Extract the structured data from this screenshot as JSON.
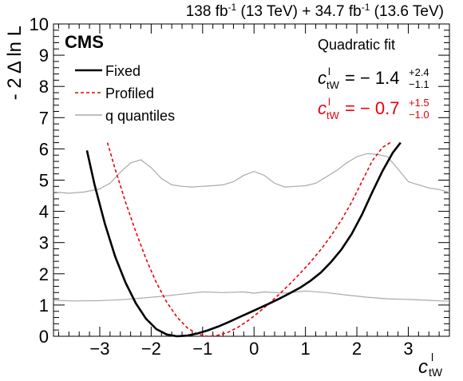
{
  "chart_data": {
    "type": "line",
    "header": {
      "lumi1": "138 fb",
      "lumi1_sup": "-1",
      "energy1": " (13 TeV) + 34.7 fb",
      "lumi2_sup": "-1",
      "energy2": " (13.6 TeV)"
    },
    "experiment": "CMS",
    "ylabel": "- 2 Δ ln L",
    "xlabel": {
      "base": "c",
      "sup": "l",
      "sub": "tW"
    },
    "xlim": [
      -3.9,
      3.8
    ],
    "ylim": [
      0,
      10
    ],
    "x_ticks": [
      -3,
      -2,
      -1,
      0,
      1,
      2,
      3
    ],
    "x_tick_labels": [
      "−3",
      "−2",
      "−1",
      "0",
      "1",
      "2",
      "3"
    ],
    "y_ticks": [
      0,
      1,
      2,
      3,
      4,
      5,
      6,
      7,
      8,
      9,
      10
    ],
    "y_tick_labels": [
      "0",
      "1",
      "2",
      "3",
      "4",
      "5",
      "6",
      "7",
      "8",
      "9",
      "10"
    ],
    "fit_title": "Quadratic fit",
    "results": [
      {
        "label_base": "c",
        "label_sup": "l",
        "label_sub": "tW",
        "eq": "= − 1.4",
        "plus": "+2.4",
        "minus": "−1.1",
        "color": "#000000"
      },
      {
        "label_base": "c",
        "label_sup": "l",
        "label_sub": "tW",
        "eq": "= − 0.7",
        "plus": "+1.5",
        "minus": "−1.0",
        "color": "#e8000b"
      }
    ],
    "series": [
      {
        "name": "Fixed",
        "color": "#000000",
        "style": "solid",
        "x": [
          -3.25,
          -3.1,
          -2.9,
          -2.7,
          -2.5,
          -2.3,
          -2.1,
          -1.9,
          -1.7,
          -1.5,
          -1.3,
          -1.1,
          -0.9,
          -0.7,
          -0.5,
          -0.3,
          -0.1,
          0.1,
          0.3,
          0.5,
          0.7,
          0.9,
          1.1,
          1.3,
          1.5,
          1.7,
          1.9,
          2.1,
          2.3,
          2.5,
          2.7,
          2.85
        ],
        "y": [
          5.95,
          4.85,
          3.6,
          2.55,
          1.72,
          1.06,
          0.56,
          0.23,
          0.06,
          0.0,
          0.02,
          0.09,
          0.19,
          0.31,
          0.45,
          0.6,
          0.75,
          0.9,
          1.05,
          1.21,
          1.38,
          1.56,
          1.78,
          2.04,
          2.38,
          2.78,
          3.28,
          3.9,
          4.62,
          5.3,
          5.88,
          6.2
        ]
      },
      {
        "name": "Profiled",
        "color": "#e8000b",
        "style": "dashed",
        "x": [
          -2.85,
          -2.7,
          -2.5,
          -2.3,
          -2.1,
          -1.9,
          -1.7,
          -1.5,
          -1.3,
          -1.1,
          -0.9,
          -0.7,
          -0.5,
          -0.3,
          -0.1,
          0.1,
          0.3,
          0.5,
          0.7,
          0.9,
          1.1,
          1.3,
          1.5,
          1.7,
          1.9,
          2.1,
          2.3,
          2.5,
          2.65
        ],
        "y": [
          6.2,
          5.35,
          4.3,
          3.35,
          2.48,
          1.72,
          1.1,
          0.62,
          0.27,
          0.07,
          0.0,
          0.03,
          0.13,
          0.3,
          0.52,
          0.78,
          1.06,
          1.36,
          1.68,
          2.02,
          2.38,
          2.78,
          3.22,
          3.72,
          4.3,
          4.96,
          5.62,
          6.05,
          6.2
        ]
      },
      {
        "name": "q quantiles",
        "color": "#aaaaaa",
        "style": "solid",
        "groups": [
          {
            "x": [
              -3.9,
              -3.6,
              -3.3,
              -3.0,
              -2.8,
              -2.6,
              -2.4,
              -2.2,
              -2.0,
              -1.8,
              -1.6,
              -1.4,
              -1.2,
              -1.0,
              -0.8,
              -0.6,
              -0.4,
              -0.2,
              0.0,
              0.2,
              0.4,
              0.6,
              0.8,
              1.0,
              1.2,
              1.4,
              1.6,
              1.8,
              2.0,
              2.2,
              2.4,
              2.6,
              2.8,
              3.0,
              3.2,
              3.4,
              3.6,
              3.8
            ],
            "y": [
              4.62,
              4.58,
              4.62,
              4.72,
              4.9,
              5.25,
              5.55,
              5.65,
              5.4,
              5.05,
              4.85,
              4.8,
              4.78,
              4.8,
              4.82,
              4.85,
              4.95,
              5.15,
              5.28,
              5.15,
              4.9,
              4.78,
              4.8,
              4.82,
              4.9,
              5.1,
              5.3,
              5.55,
              5.75,
              5.85,
              5.82,
              5.75,
              5.35,
              4.95,
              4.85,
              4.75,
              4.7,
              4.6
            ]
          },
          {
            "x": [
              -3.9,
              -3.5,
              -3.0,
              -2.6,
              -2.2,
              -1.8,
              -1.4,
              -1.0,
              -0.6,
              -0.2,
              0.0,
              0.2,
              0.6,
              1.0,
              1.4,
              1.8,
              2.2,
              2.6,
              3.0,
              3.4,
              3.8
            ],
            "y": [
              1.15,
              1.13,
              1.14,
              1.17,
              1.22,
              1.28,
              1.35,
              1.42,
              1.4,
              1.42,
              1.38,
              1.42,
              1.38,
              1.45,
              1.4,
              1.32,
              1.25,
              1.2,
              1.18,
              1.15,
              1.12
            ]
          }
        ]
      }
    ],
    "legend": {
      "placement": "top-left",
      "entries": [
        "Fixed",
        "Profiled",
        "q quantiles"
      ]
    },
    "grid": false
  }
}
